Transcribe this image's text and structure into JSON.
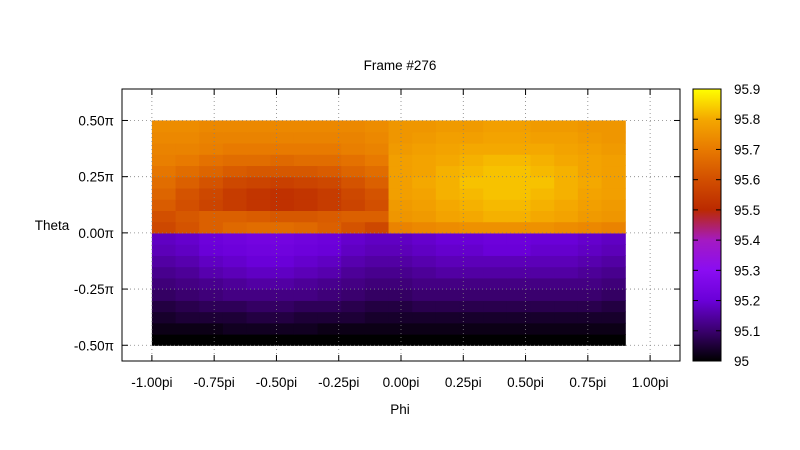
{
  "chart_data": {
    "type": "heatmap",
    "title": "Frame #276",
    "xlabel": "Phi",
    "ylabel": "Theta",
    "xlim": [
      -1.12,
      1.12
    ],
    "ylim": [
      -0.57,
      0.64
    ],
    "x_ticks": [
      {
        "value": -1.0,
        "label": "-1.00pi"
      },
      {
        "value": -0.75,
        "label": "-0.75pi"
      },
      {
        "value": -0.5,
        "label": "-0.50pi"
      },
      {
        "value": -0.25,
        "label": "-0.25pi"
      },
      {
        "value": 0.0,
        "label": "0.00pi"
      },
      {
        "value": 0.25,
        "label": "0.25pi"
      },
      {
        "value": 0.5,
        "label": "0.50pi"
      },
      {
        "value": 0.75,
        "label": "0.75pi"
      },
      {
        "value": 1.0,
        "label": "1.00pi"
      }
    ],
    "y_ticks": [
      {
        "value": 0.5,
        "label": "0.50π"
      },
      {
        "value": 0.25,
        "label": "0.25π"
      },
      {
        "value": 0.0,
        "label": "0.00π"
      },
      {
        "value": -0.25,
        "label": "-0.25π"
      },
      {
        "value": -0.5,
        "label": "-0.50π"
      }
    ],
    "grid": true,
    "colorbar": {
      "min": 95.0,
      "max": 95.9,
      "ticks": [
        {
          "value": 95.9,
          "label": "95.9"
        },
        {
          "value": 95.8,
          "label": "95.8"
        },
        {
          "value": 95.7,
          "label": "95.7"
        },
        {
          "value": 95.6,
          "label": "95.6"
        },
        {
          "value": 95.5,
          "label": "95.5"
        },
        {
          "value": 95.4,
          "label": "95.4"
        },
        {
          "value": 95.3,
          "label": "95.3"
        },
        {
          "value": 95.2,
          "label": "95.2"
        },
        {
          "value": 95.1,
          "label": "95.1"
        },
        {
          "value": 95.0,
          "label": "95"
        }
      ],
      "palette": [
        "#000000",
        "#3a006e",
        "#6a00d8",
        "#8a0df2",
        "#a41ac2",
        "#bb2a00",
        "#d24f00",
        "#e87a00",
        "#f4a800",
        "#ffff00"
      ]
    },
    "x_range": [
      -1.0,
      0.9
    ],
    "y_range": [
      -0.5,
      0.5
    ],
    "columns": 20,
    "rows": 20,
    "z": [
      [
        95.0,
        95.0,
        95.0,
        95.0,
        95.0,
        95.0,
        95.0,
        95.0,
        95.0,
        95.0,
        95.0,
        95.0,
        95.0,
        95.0,
        95.0,
        95.0,
        95.0,
        95.0,
        95.0,
        95.0
      ],
      [
        95.02,
        95.02,
        95.02,
        95.03,
        95.03,
        95.03,
        95.03,
        95.02,
        95.02,
        95.02,
        95.02,
        95.02,
        95.02,
        95.02,
        95.02,
        95.02,
        95.02,
        95.02,
        95.02,
        95.02
      ],
      [
        95.04,
        95.05,
        95.05,
        95.05,
        95.06,
        95.06,
        95.05,
        95.05,
        95.05,
        95.04,
        95.04,
        95.04,
        95.04,
        95.04,
        95.04,
        95.04,
        95.04,
        95.04,
        95.04,
        95.04
      ],
      [
        95.06,
        95.07,
        95.08,
        95.08,
        95.09,
        95.09,
        95.08,
        95.08,
        95.07,
        95.06,
        95.06,
        95.07,
        95.07,
        95.07,
        95.07,
        95.07,
        95.07,
        95.07,
        95.07,
        95.06
      ],
      [
        95.09,
        95.1,
        95.11,
        95.12,
        95.12,
        95.12,
        95.12,
        95.11,
        95.1,
        95.09,
        95.09,
        95.1,
        95.1,
        95.1,
        95.1,
        95.1,
        95.1,
        95.1,
        95.1,
        95.09
      ],
      [
        95.11,
        95.12,
        95.13,
        95.14,
        95.15,
        95.15,
        95.14,
        95.13,
        95.12,
        95.11,
        95.11,
        95.12,
        95.12,
        95.12,
        95.12,
        95.12,
        95.12,
        95.12,
        95.12,
        95.11
      ],
      [
        95.13,
        95.14,
        95.16,
        95.17,
        95.18,
        95.18,
        95.17,
        95.16,
        95.14,
        95.13,
        95.13,
        95.14,
        95.15,
        95.15,
        95.15,
        95.15,
        95.15,
        95.15,
        95.14,
        95.13
      ],
      [
        95.15,
        95.16,
        95.18,
        95.19,
        95.2,
        95.2,
        95.19,
        95.18,
        95.16,
        95.15,
        95.15,
        95.16,
        95.17,
        95.17,
        95.17,
        95.17,
        95.17,
        95.17,
        95.16,
        95.15
      ],
      [
        95.17,
        95.18,
        95.2,
        95.21,
        95.22,
        95.22,
        95.21,
        95.2,
        95.18,
        95.17,
        95.17,
        95.18,
        95.19,
        95.19,
        95.2,
        95.2,
        95.19,
        95.19,
        95.18,
        95.17
      ],
      [
        95.18,
        95.19,
        95.21,
        95.22,
        95.23,
        95.23,
        95.22,
        95.21,
        95.19,
        95.18,
        95.18,
        95.19,
        95.2,
        95.2,
        95.21,
        95.21,
        95.2,
        95.2,
        95.19,
        95.18
      ],
      [
        95.58,
        95.61,
        95.64,
        95.66,
        95.67,
        95.67,
        95.66,
        95.64,
        95.61,
        95.58,
        95.72,
        95.73,
        95.74,
        95.75,
        95.75,
        95.75,
        95.75,
        95.74,
        95.73,
        95.72
      ],
      [
        95.6,
        95.62,
        95.64,
        95.64,
        95.63,
        95.62,
        95.62,
        95.63,
        95.64,
        95.64,
        95.76,
        95.77,
        95.79,
        95.8,
        95.81,
        95.81,
        95.8,
        95.79,
        95.77,
        95.76
      ],
      [
        95.63,
        95.6,
        95.57,
        95.55,
        95.53,
        95.52,
        95.53,
        95.55,
        95.57,
        95.6,
        95.77,
        95.78,
        95.8,
        95.81,
        95.82,
        95.82,
        95.81,
        95.8,
        95.78,
        95.77
      ],
      [
        95.65,
        95.61,
        95.58,
        95.55,
        95.53,
        95.52,
        95.53,
        95.55,
        95.58,
        95.61,
        95.78,
        95.79,
        95.81,
        95.82,
        95.83,
        95.83,
        95.82,
        95.81,
        95.79,
        95.78
      ],
      [
        95.67,
        95.64,
        95.61,
        95.58,
        95.57,
        95.56,
        95.57,
        95.58,
        95.61,
        95.64,
        95.78,
        95.8,
        95.81,
        95.83,
        95.83,
        95.83,
        95.83,
        95.81,
        95.8,
        95.78
      ],
      [
        95.69,
        95.67,
        95.65,
        95.63,
        95.62,
        95.62,
        95.62,
        95.63,
        95.65,
        95.67,
        95.78,
        95.79,
        95.81,
        95.82,
        95.83,
        95.83,
        95.82,
        95.81,
        95.79,
        95.78
      ],
      [
        95.71,
        95.7,
        95.68,
        95.67,
        95.67,
        95.66,
        95.67,
        95.67,
        95.68,
        95.7,
        95.78,
        95.79,
        95.8,
        95.81,
        95.82,
        95.82,
        95.81,
        95.8,
        95.79,
        95.78
      ],
      [
        95.72,
        95.72,
        95.71,
        95.7,
        95.7,
        95.7,
        95.7,
        95.7,
        95.71,
        95.72,
        95.77,
        95.78,
        95.79,
        95.8,
        95.8,
        95.8,
        95.8,
        95.79,
        95.78,
        95.77
      ],
      [
        95.73,
        95.73,
        95.72,
        95.72,
        95.72,
        95.72,
        95.72,
        95.72,
        95.72,
        95.73,
        95.76,
        95.77,
        95.78,
        95.78,
        95.79,
        95.79,
        95.78,
        95.78,
        95.77,
        95.76
      ],
      [
        95.74,
        95.74,
        95.73,
        95.73,
        95.73,
        95.73,
        95.73,
        95.73,
        95.73,
        95.74,
        95.76,
        95.76,
        95.77,
        95.77,
        95.78,
        95.78,
        95.77,
        95.77,
        95.76,
        95.76
      ]
    ]
  }
}
